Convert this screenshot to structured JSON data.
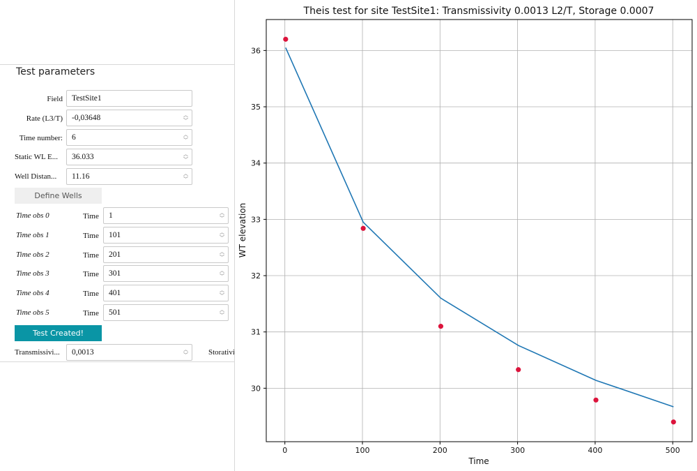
{
  "panel": {
    "heading": "Test parameters",
    "field_label": "Field",
    "field_value": "TestSite1",
    "rate_label": "Rate (L3/T)",
    "rate_value": "-0,03648",
    "timenum_label": "Time number:",
    "timenum_value": "6",
    "static_label": "Static WL E...",
    "static_value": "36.033",
    "dist_label": "Well Distan...",
    "dist_value": "11.16",
    "define_wells_label": "Define Wells",
    "time_word": "Time",
    "time_obs": [
      {
        "label": "Time obs 0",
        "value": "1"
      },
      {
        "label": "Time obs 1",
        "value": "101"
      },
      {
        "label": "Time obs 2",
        "value": "201"
      },
      {
        "label": "Time obs 3",
        "value": "301"
      },
      {
        "label": "Time obs 4",
        "value": "401"
      },
      {
        "label": "Time obs 5",
        "value": "501"
      }
    ],
    "test_created_label": "Test Created!",
    "transmissivity_label": "Transmissivi...",
    "transmissivity_value": "0,0013",
    "storativity_label": "Storativi"
  },
  "colors": {
    "accent_button": "#0a95a5",
    "line": "#1f77b4",
    "points": "#dc143c"
  },
  "chart_data": {
    "type": "line",
    "title": "Theis test for site TestSite1: Transmissivity 0.0013 L2/T, Storage 0.0007",
    "xlabel": "Time",
    "ylabel": "WT elevation",
    "xlim": [
      -24,
      525
    ],
    "ylim": [
      29.05,
      36.55
    ],
    "xticks": [
      0,
      100,
      200,
      300,
      400,
      500
    ],
    "yticks": [
      30,
      31,
      32,
      33,
      34,
      35,
      36
    ],
    "grid": true,
    "series": [
      {
        "kind": "line",
        "x": [
          1,
          101,
          201,
          301,
          401,
          501
        ],
        "y": [
          36.05,
          32.95,
          31.6,
          30.76,
          30.14,
          29.67
        ]
      },
      {
        "kind": "scatter",
        "x": [
          1,
          101,
          201,
          301,
          401,
          501
        ],
        "y": [
          36.2,
          32.84,
          31.1,
          30.33,
          29.79,
          29.4
        ]
      }
    ]
  }
}
